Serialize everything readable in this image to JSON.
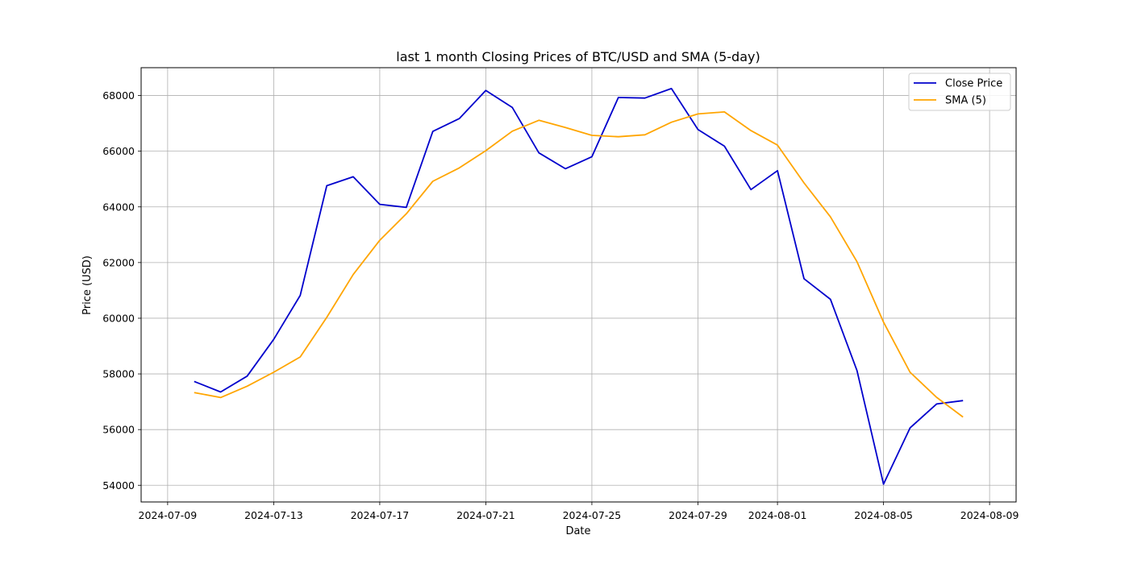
{
  "chart_data": {
    "type": "line",
    "title": "last 1 month Closing Prices of BTC/USD and SMA (5-day)",
    "xlabel": "Date",
    "ylabel": "Price (USD)",
    "x_ticks": [
      "2024-07-09",
      "2024-07-13",
      "2024-07-17",
      "2024-07-21",
      "2024-07-25",
      "2024-07-29",
      "2024-08-01",
      "2024-08-05",
      "2024-08-09"
    ],
    "y_ticks": [
      54000,
      56000,
      58000,
      60000,
      62000,
      64000,
      66000,
      68000
    ],
    "xlim": [
      "2024-07-08",
      "2024-08-10"
    ],
    "ylim": [
      53400,
      69000
    ],
    "grid": true,
    "legend_position": "top-right",
    "x": [
      "2024-07-10",
      "2024-07-11",
      "2024-07-12",
      "2024-07-13",
      "2024-07-14",
      "2024-07-15",
      "2024-07-16",
      "2024-07-17",
      "2024-07-18",
      "2024-07-19",
      "2024-07-20",
      "2024-07-21",
      "2024-07-22",
      "2024-07-23",
      "2024-07-24",
      "2024-07-25",
      "2024-07-26",
      "2024-07-27",
      "2024-07-28",
      "2024-07-29",
      "2024-07-30",
      "2024-07-31",
      "2024-08-01",
      "2024-08-02",
      "2024-08-03",
      "2024-08-04",
      "2024-08-05",
      "2024-08-06",
      "2024-08-07",
      "2024-08-08"
    ],
    "series": [
      {
        "name": "Close Price",
        "color": "#0000cc",
        "values": [
          57730,
          57350,
          57920,
          59240,
          60820,
          64760,
          65080,
          64090,
          63980,
          66710,
          67170,
          68180,
          67570,
          65940,
          65370,
          65800,
          67930,
          67910,
          68250,
          66780,
          66180,
          64620,
          65300,
          61420,
          60680,
          58120,
          54040,
          56060,
          56920,
          57040
        ]
      },
      {
        "name": "SMA (5)",
        "color": "#ffa500",
        "values": [
          57330,
          57150,
          57560,
          58060,
          58610,
          60030,
          61570,
          62800,
          63750,
          64920,
          65400,
          66020,
          66720,
          67110,
          66850,
          66570,
          66520,
          66590,
          67040,
          67340,
          67410,
          66740,
          66220,
          64860,
          63640,
          62030,
          59860,
          58060,
          57160,
          56450
        ]
      }
    ]
  }
}
